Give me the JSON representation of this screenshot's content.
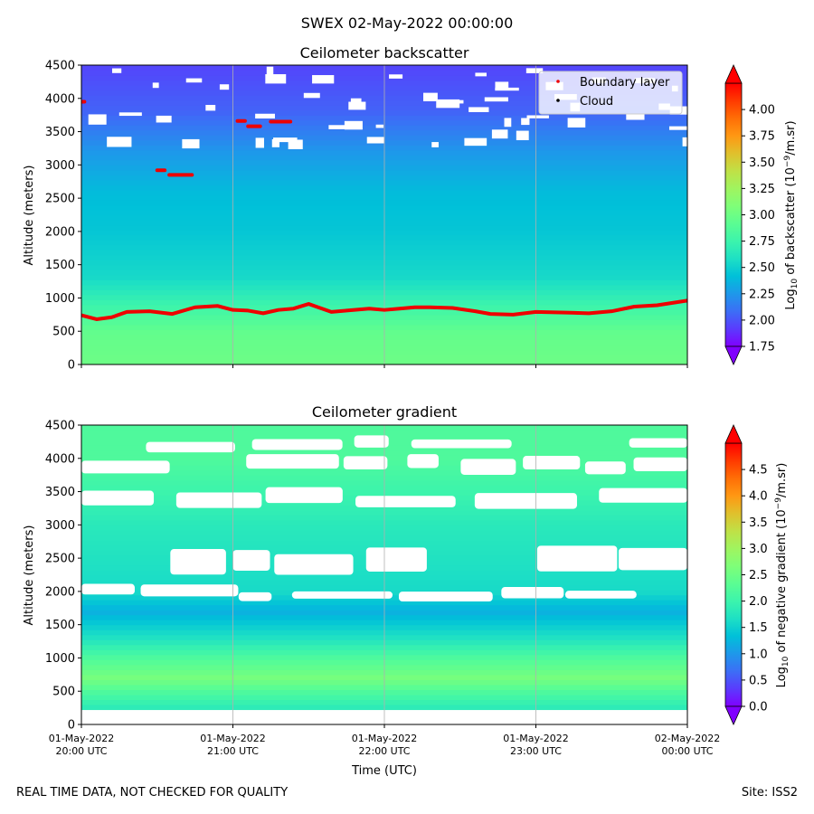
{
  "suptitle": "SWEX 02-May-2022 00:00:00",
  "footer": {
    "left": "REAL TIME DATA, NOT CHECKED FOR QUALITY",
    "right": "Site: ISS2"
  },
  "colors": {
    "rainbow": [
      "#8000ff",
      "#5a3bfd",
      "#3c6ef6",
      "#1e98ea",
      "#00c0d9",
      "#1ee0c4",
      "#3cf4ac",
      "#5bfd92",
      "#7ffe78",
      "#a0f45f",
      "#c0e046",
      "#e0c02c",
      "#ff9813",
      "#ff6e06",
      "#ff3a00",
      "#ff0000"
    ],
    "boundary_layer": "#ee0000",
    "cloud": "#000000",
    "grid": "#b0b0b0"
  },
  "chart_data": [
    {
      "type": "heatmap",
      "title": "Ceilometer backscatter",
      "xlabel": "",
      "ylabel": "Altitude (meters)",
      "ylim": [
        0,
        4500
      ],
      "yticks": [
        "0",
        "500",
        "1000",
        "1500",
        "2000",
        "2500",
        "3000",
        "3500",
        "4000",
        "4500"
      ],
      "xlim_hours": [
        20,
        24
      ],
      "xtick_hours": [
        20,
        21,
        22,
        23,
        24
      ],
      "xticklabels_visible": false,
      "grid": "vertical lines at each hour",
      "colorbar": {
        "label": "Log10 of backscatter (10^-9/m.sr)",
        "range": [
          1.75,
          4.25
        ],
        "ticks": [
          "1.75",
          "2.00",
          "2.25",
          "2.50",
          "2.75",
          "3.00",
          "3.25",
          "3.50",
          "3.75",
          "4.00"
        ],
        "extend": "both"
      },
      "legend": {
        "placement": "top-right",
        "entries": [
          {
            "label": "Boundary layer",
            "marker": "red dot"
          },
          {
            "label": "Cloud",
            "marker": "black dot"
          }
        ]
      },
      "profile": [
        {
          "altitude": 0,
          "value": 3.0
        },
        {
          "altitude": 500,
          "value": 2.95
        },
        {
          "altitude": 900,
          "value": 2.75
        },
        {
          "altitude": 1300,
          "value": 2.55
        },
        {
          "altitude": 2000,
          "value": 2.45
        },
        {
          "altitude": 2600,
          "value": 2.4
        },
        {
          "altitude": 3200,
          "value": 2.25
        },
        {
          "altitude": 3800,
          "value": 2.05
        },
        {
          "altitude": 4500,
          "value": 1.95
        }
      ],
      "boundary_layer_series": {
        "name": "Boundary layer",
        "x_hours": [
          20.0,
          20.1,
          20.2,
          20.3,
          20.45,
          20.6,
          20.75,
          20.9,
          21.0,
          21.1,
          21.2,
          21.3,
          21.4,
          21.5,
          21.55,
          21.65,
          21.75,
          21.9,
          22.0,
          22.1,
          22.2,
          22.3,
          22.45,
          22.6,
          22.7,
          22.85,
          23.0,
          23.2,
          23.35,
          23.5,
          23.65,
          23.8,
          24.0
        ],
        "altitude": [
          740,
          680,
          710,
          790,
          800,
          760,
          860,
          880,
          820,
          810,
          770,
          820,
          840,
          910,
          870,
          790,
          810,
          840,
          820,
          840,
          860,
          860,
          850,
          800,
          760,
          750,
          790,
          780,
          770,
          800,
          870,
          890,
          960
        ]
      },
      "boundary_layer_segments": [
        {
          "x_hours": [
            20.0,
            20.02
          ],
          "altitude": [
            3950,
            3950
          ]
        },
        {
          "x_hours": [
            20.5,
            20.55
          ],
          "altitude": [
            2920,
            2920
          ]
        },
        {
          "x_hours": [
            20.58,
            20.73
          ],
          "altitude": [
            2850,
            2850
          ]
        },
        {
          "x_hours": [
            21.03,
            21.08
          ],
          "altitude": [
            3660,
            3660
          ]
        },
        {
          "x_hours": [
            21.1,
            21.18
          ],
          "altitude": [
            3580,
            3580
          ]
        },
        {
          "x_hours": [
            21.25,
            21.38
          ],
          "altitude": [
            3650,
            3650
          ]
        }
      ],
      "clear_regions_note": "white gaps near top of profile (3300-4500 m)"
    },
    {
      "type": "heatmap",
      "title": "Ceilometer gradient",
      "xlabel": "Time (UTC)",
      "ylabel": "Altitude (meters)",
      "ylim": [
        0,
        4500
      ],
      "yticks": [
        "0",
        "500",
        "1000",
        "1500",
        "2000",
        "2500",
        "3000",
        "3500",
        "4000",
        "4500"
      ],
      "xlim_hours": [
        20,
        24
      ],
      "xtick_hours": [
        20,
        21,
        22,
        23,
        24
      ],
      "xticklabels": [
        [
          "01-May-2022",
          "20:00 UTC"
        ],
        [
          "01-May-2022",
          "21:00 UTC"
        ],
        [
          "01-May-2022",
          "22:00 UTC"
        ],
        [
          "01-May-2022",
          "23:00 UTC"
        ],
        [
          "02-May-2022",
          "00:00 UTC"
        ]
      ],
      "grid": "vertical lines at each hour",
      "colorbar": {
        "label": "Log10 of negative gradient (10^-9/m.sr)",
        "range": [
          0.0,
          5.0
        ],
        "ticks": [
          "0.0",
          "0.5",
          "1.0",
          "1.5",
          "2.0",
          "2.5",
          "3.0",
          "3.5",
          "4.0",
          "4.5"
        ],
        "extend": "both"
      },
      "profile": [
        {
          "altitude": 0,
          "value": null
        },
        {
          "altitude": 200,
          "value": 1.75
        },
        {
          "altitude": 500,
          "value": 2.2
        },
        {
          "altitude": 700,
          "value": 2.6
        },
        {
          "altitude": 1000,
          "value": 2.2
        },
        {
          "altitude": 1300,
          "value": 1.7
        },
        {
          "altitude": 1700,
          "value": 1.2
        },
        {
          "altitude": 2000,
          "value": 1.6
        },
        {
          "altitude": 3000,
          "value": 1.8
        },
        {
          "altitude": 4000,
          "value": 2.2
        }
      ],
      "clear_bands_altitude": [
        [
          1900,
          2050
        ],
        [
          2300,
          2650
        ],
        [
          3300,
          3500
        ],
        [
          3800,
          4000
        ],
        [
          4150,
          4300
        ]
      ],
      "clear_regions_note": "white gaps where the gradient is not negative; surface band below ~180 m is empty"
    }
  ]
}
